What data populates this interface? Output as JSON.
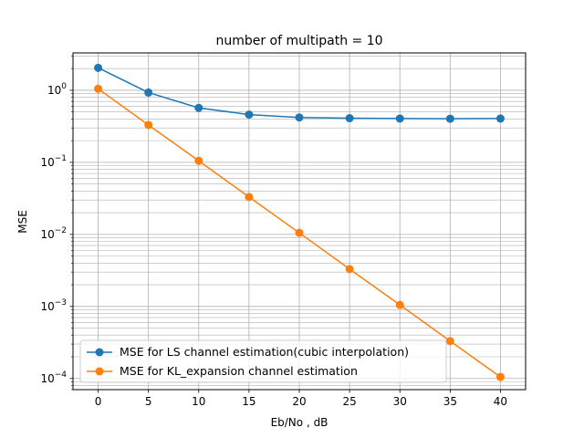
{
  "chart_data": {
    "type": "line",
    "title": "number of multipath = 10",
    "xlabel": "Eb/No , dB",
    "ylabel": "MSE",
    "x": [
      0,
      5,
      10,
      15,
      20,
      25,
      30,
      35,
      40
    ],
    "xlim": [
      -2.5,
      42.5
    ],
    "ylim": [
      7e-05,
      3.3
    ],
    "yscale": "log",
    "grid": true,
    "xticks": [
      "0",
      "5",
      "10",
      "15",
      "20",
      "25",
      "30",
      "35",
      "40"
    ],
    "yticks": [
      {
        "base": "10",
        "exp": "0",
        "value": 1
      },
      {
        "base": "10",
        "exp": "−1",
        "value": 0.1
      },
      {
        "base": "10",
        "exp": "−2",
        "value": 0.01
      },
      {
        "base": "10",
        "exp": "−3",
        "value": 0.001
      },
      {
        "base": "10",
        "exp": "−4",
        "value": 0.0001
      }
    ],
    "legend_position": "lower-left",
    "series": [
      {
        "name": "MSE for LS channel estimation(cubic interpolation)",
        "color": "#1f77b4",
        "values": [
          2.05,
          0.93,
          0.57,
          0.46,
          0.42,
          0.41,
          0.405,
          0.403,
          0.405
        ]
      },
      {
        "name": "MSE for KL_expansion channel estimation",
        "color": "#ff7f0e",
        "values": [
          1.05,
          0.33,
          0.105,
          0.033,
          0.0105,
          0.0033,
          0.00105,
          0.00033,
          0.000105
        ]
      }
    ]
  }
}
